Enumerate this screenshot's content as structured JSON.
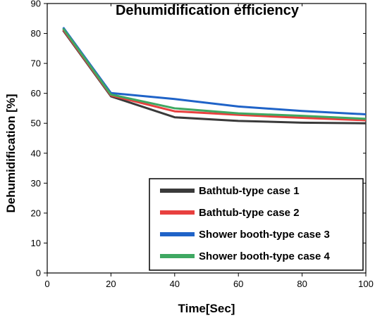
{
  "chart_data": {
    "type": "line",
    "title": "Dehumidification efficiency",
    "xlabel": "Time[Sec]",
    "ylabel": "Dehumidification [%]",
    "xlim": [
      0,
      100
    ],
    "ylim": [
      0,
      90
    ],
    "xticks": [
      0,
      20,
      40,
      60,
      80,
      100
    ],
    "yticks": [
      0,
      10,
      20,
      30,
      40,
      50,
      60,
      70,
      80,
      90
    ],
    "grid": false,
    "legend_position": "bottom-right",
    "x": [
      5,
      20,
      40,
      60,
      80,
      100
    ],
    "series": [
      {
        "name": "Bathtub-type case 1",
        "color": "#3a3a3a",
        "values": [
          81,
          59,
          52,
          50.8,
          50.2,
          50
        ]
      },
      {
        "name": "Bathtub-type case 2",
        "color": "#e8403f",
        "values": [
          81.3,
          59.3,
          54,
          52.8,
          51.8,
          51
        ]
      },
      {
        "name": "Shower booth-type case 3",
        "color": "#1f63c8",
        "values": [
          82,
          60.1,
          58.1,
          55.6,
          54.1,
          53
        ]
      },
      {
        "name": "Shower booth-type case 4",
        "color": "#3fa862",
        "values": [
          81.7,
          59.6,
          55,
          53.3,
          52.5,
          51.5
        ]
      }
    ]
  }
}
